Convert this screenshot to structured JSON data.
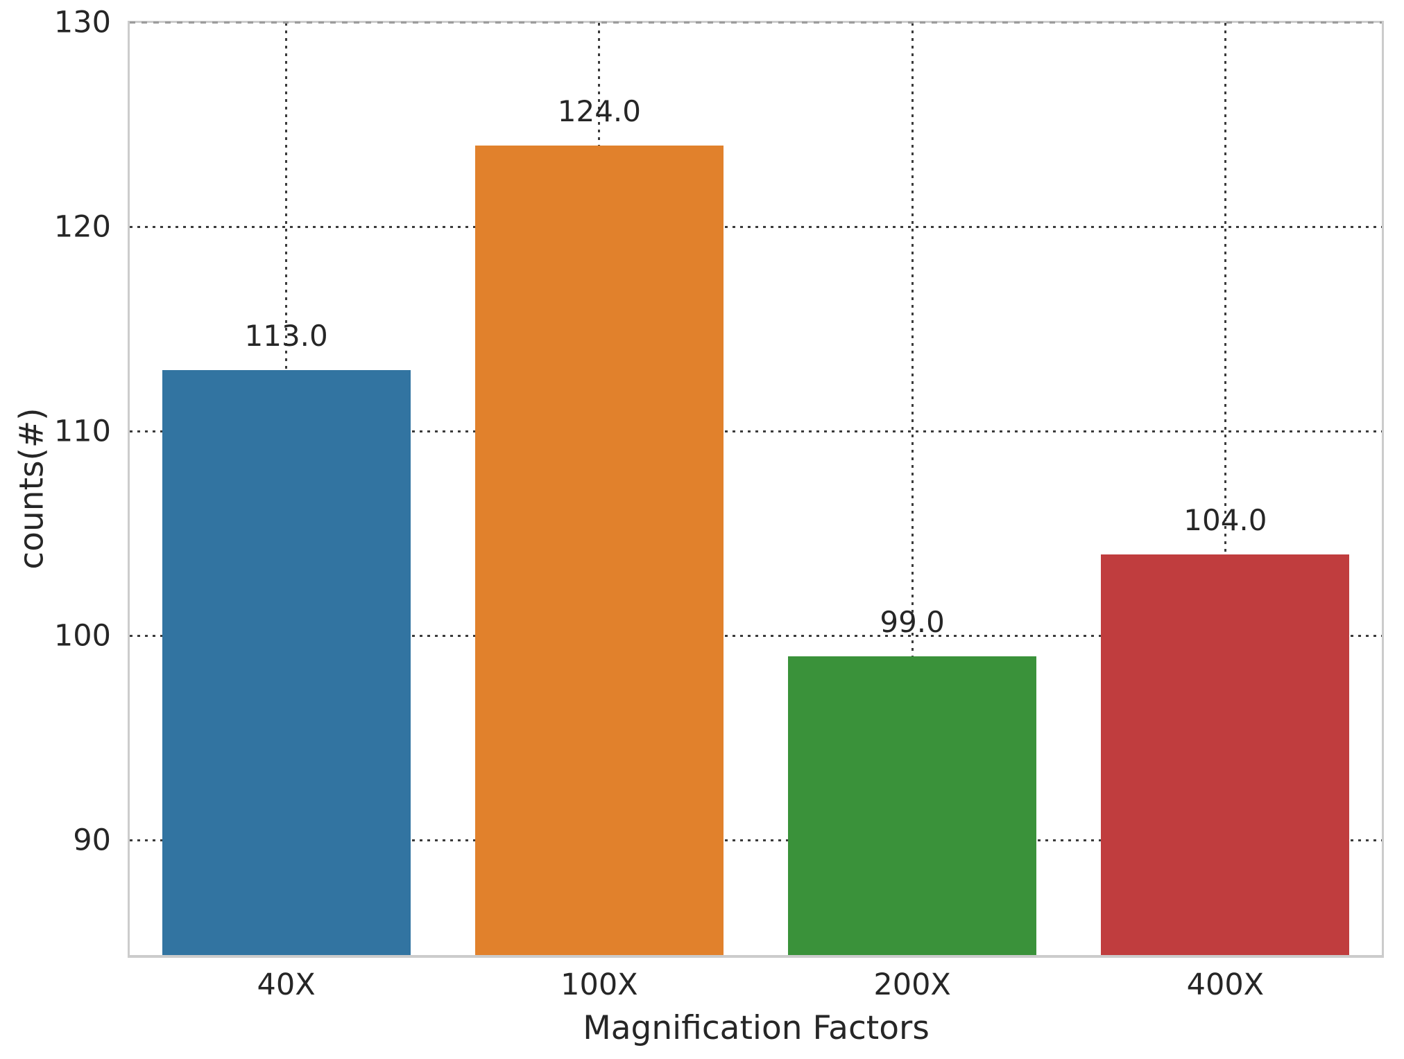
{
  "chart_data": {
    "type": "bar",
    "title": "",
    "categories": [
      "40X",
      "100X",
      "200X",
      "400X"
    ],
    "values": [
      113,
      124,
      99,
      104
    ],
    "bar_labels": [
      "113.0",
      "124.0",
      "99.0",
      "104.0"
    ],
    "bar_colors": [
      "#3274a1",
      "#e1812c",
      "#3a923a",
      "#c03d3e"
    ],
    "xlabel": "Magnification Factors",
    "ylabel": "counts(#)",
    "yticks": [
      90,
      100,
      110,
      120,
      130
    ],
    "ylim": [
      84.4,
      130
    ],
    "bar_width_fraction": 0.8,
    "grid": "dotted, horizontal at each ytick and vertical at each category center",
    "legend": "none",
    "colors": {
      "grid": "#3b3b3b",
      "spine": "#cccccc",
      "text": "#262626",
      "background": "#ffffff"
    }
  }
}
